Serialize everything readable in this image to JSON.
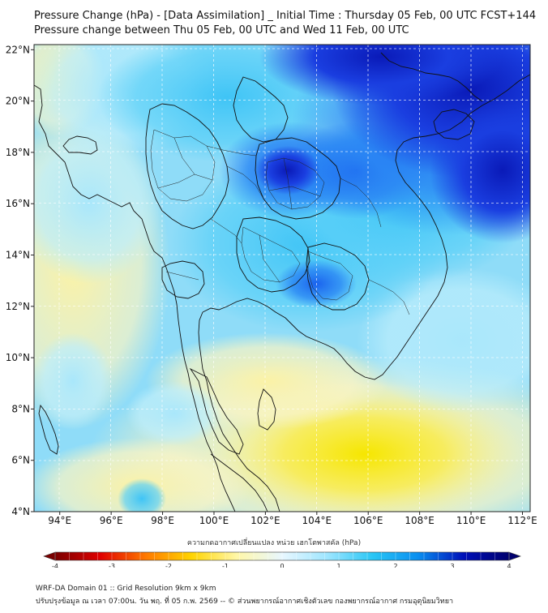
{
  "title": {
    "line1": "Pressure Change (hPa) - [Data Assimilation] _ Initial Time : Thursday 05 Feb, 00 UTC FCST+144",
    "line2": "Pressure change between Thu 05 Feb, 00 UTC and Wed 11 Feb, 00 UTC"
  },
  "map": {
    "lon_ticks": [
      "94°E",
      "96°E",
      "98°E",
      "100°E",
      "102°E",
      "104°E",
      "106°E",
      "108°E",
      "110°E",
      "112°E"
    ],
    "lat_ticks": [
      "22°N",
      "20°N",
      "18°N",
      "16°N",
      "14°N",
      "12°N",
      "10°N",
      "8°N",
      "6°N",
      "4°N"
    ],
    "lon_range": [
      93,
      112.3
    ],
    "lat_range": [
      4,
      22.2
    ],
    "grid": true
  },
  "colorbar": {
    "title": "ความกดอากาศเปลี่ยนแปลง หน่วย เฮกโตพาสคัล (hPa)",
    "ticks": [
      "-4",
      "-3",
      "-2",
      "-1",
      "0",
      "1",
      "2",
      "3",
      "4"
    ],
    "range": [
      -4,
      4
    ],
    "colors": [
      "#7a0000",
      "#e00000",
      "#ff7a00",
      "#ffd400",
      "#fff7a8",
      "#e8f7ff",
      "#9ee6ff",
      "#29c6f5",
      "#0a8ef0",
      "#0010b8",
      "#00006e"
    ]
  },
  "footer": {
    "line1": "WRF-DA Domain 01 :: Grid Resolution 9km x 9km",
    "line2": "ปรับปรุงข้อมูล ณ เวลา 07:00น. วัน พฤ. ที่ 05 ก.พ. 2569 -- © ส่วนพยากรณ์อากาศเชิงตัวเลข กองพยากรณ์อากาศ กรมอุตุนิยมวิทยา"
  }
}
